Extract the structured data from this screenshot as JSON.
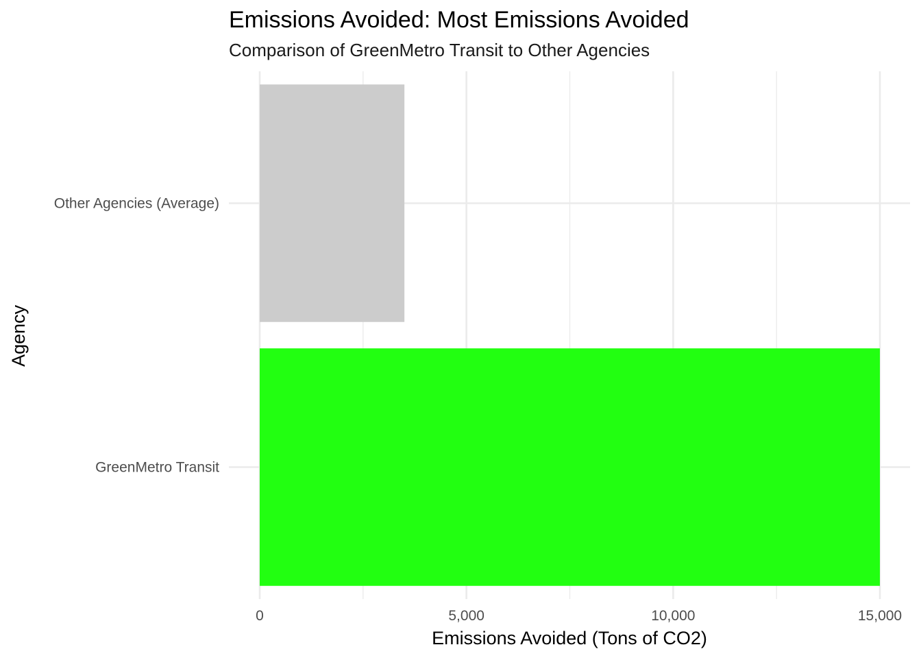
{
  "chart_data": {
    "type": "bar",
    "orientation": "horizontal",
    "title": "Emissions Avoided: Most Emissions Avoided",
    "subtitle": "Comparison of GreenMetro Transit to Other Agencies",
    "xlabel": "Emissions Avoided (Tons of CO2)",
    "ylabel": "Agency",
    "categories": [
      "GreenMetro Transit",
      "Other Agencies (Average)"
    ],
    "values": [
      15000,
      3500
    ],
    "bar_colors": [
      "#22ff11",
      "#cccccc"
    ],
    "xlim": [
      0,
      15000
    ],
    "x_ticks": [
      0,
      5000,
      10000,
      15000
    ],
    "x_tick_labels": [
      "0",
      "5,000",
      "10,000",
      "15,000"
    ],
    "grid": true,
    "legend": "none"
  }
}
